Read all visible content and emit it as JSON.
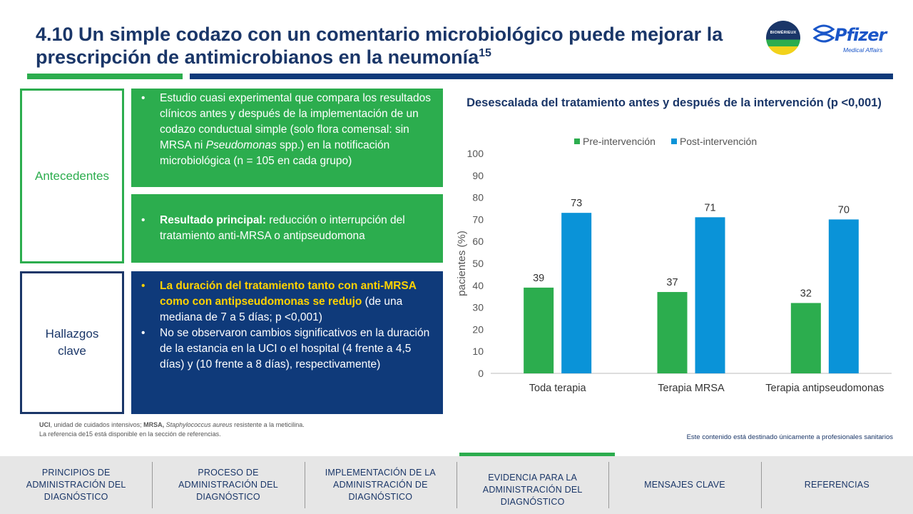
{
  "header": {
    "title": "4.10 Un simple codazo con un comentario microbiológico puede mejorar la prescripción de antimicrobianos en la neumonía",
    "title_sup": "15"
  },
  "logos": {
    "biomerieux": "BIOMÉRIEUX",
    "pfizer": "Pfizer",
    "pfizer_sub": "Medical Affairs"
  },
  "sections": {
    "antecedentes_label": "Antecedentes",
    "hallazgos_label": "Hallazgos clave",
    "box1": {
      "before_italic": "Estudio cuasi experimental que compara los resultados clínicos antes y después de la implementación de un codazo conductual simple (solo flora comensal: sin MRSA ni ",
      "italic": "Pseudomonas",
      "after_italic": " spp.) en la notificación microbiológica (n = 105 en cada grupo)"
    },
    "box2": {
      "bold": "Resultado principal:",
      "rest": " reducción o interrupción del tratamiento anti-MRSA o antipseudomona"
    },
    "box3": {
      "b1_highlight": "La duración del tratamiento tanto con anti-MRSA como con antipseudomonas se redujo",
      "b1_rest": " (de una mediana de 7 a 5 días; p <0,001)",
      "b2": "No se observaron cambios significativos en la duración de la estancia en la UCI o el hospital (4 frente a 4,5 días) y (10 frente a 8 días), respectivamente)"
    }
  },
  "footnotes": {
    "line1_a": "UCI",
    "line1_b": ", unidad de cuidados intensivos; ",
    "line1_c": "MRSA,",
    "line1_d": " Staphylococcus aureus",
    "line1_e": " resistente a la meticilina.",
    "line2": "La referencia de15 está disponible en la sección de referencias."
  },
  "disclaimer": "Este contenido está destinado únicamente a profesionales sanitarios",
  "chart_data": {
    "type": "bar",
    "title": "Desescalada del tratamiento antes y después de la intervención (p <0,001)",
    "ylabel": "pacientes (%)",
    "xlabel": "",
    "ylim": [
      0,
      100
    ],
    "yticks": [
      0,
      10,
      20,
      30,
      40,
      50,
      60,
      70,
      80,
      90,
      100
    ],
    "grid": false,
    "legend_position": "top",
    "categories": [
      "Toda terapia",
      "Terapia MRSA",
      "Terapia antipseudomonas"
    ],
    "series": [
      {
        "name": "Pre-intervención",
        "values": [
          39,
          37,
          32
        ],
        "color": "#2cad4e"
      },
      {
        "name": "Post-intervención",
        "values": [
          73,
          71,
          70
        ],
        "color": "#0a93d8"
      }
    ]
  },
  "nav": {
    "items": [
      "PRINCIPIOS DE ADMINISTRACIÓN DEL DIAGNÓSTICO",
      "PROCESO DE ADMINISTRACIÓN DEL DIAGNÓSTICO",
      "IMPLEMENTACIÓN DE LA ADMINISTRACIÓN DE DIAGNÓSTICO",
      "EVIDENCIA PARA LA ADMINISTRACIÓN DEL DIAGNÓSTICO",
      "MENSAJES CLAVE",
      "REFERENCIAS"
    ],
    "active_index": 3
  }
}
